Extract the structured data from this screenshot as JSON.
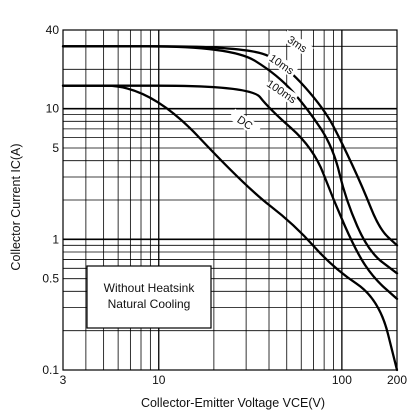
{
  "chart_data": {
    "type": "line",
    "title": "",
    "xlabel": "Collector-Emitter Voltage VCE(V)",
    "ylabel": "Collector Current IC(A)",
    "xscale": "log",
    "yscale": "log",
    "xlim": [
      3,
      200
    ],
    "ylim": [
      0.1,
      40
    ],
    "grid": true,
    "x_ticks": [
      {
        "value": 3,
        "label": "3"
      },
      {
        "value": 10,
        "label": "10"
      },
      {
        "value": 100,
        "label": "100"
      },
      {
        "value": 200,
        "label": "200"
      }
    ],
    "y_ticks": [
      {
        "value": 0.1,
        "label": "0.1"
      },
      {
        "value": 0.5,
        "label": "0.5"
      },
      {
        "value": 1,
        "label": "1"
      },
      {
        "value": 5,
        "label": "5"
      },
      {
        "value": 10,
        "label": "10"
      },
      {
        "value": 40,
        "label": "40"
      }
    ],
    "series": [
      {
        "name": "3ms",
        "label_at": [
          56,
          30
        ],
        "points": [
          [
            3,
            30
          ],
          [
            32,
            30
          ],
          [
            50,
            21
          ],
          [
            80,
            10
          ],
          [
            100,
            5.5
          ],
          [
            130,
            2.5
          ],
          [
            160,
            1.2
          ],
          [
            200,
            0.9
          ]
        ]
      },
      {
        "name": "10ms",
        "label_at": [
          46,
          21
        ],
        "points": [
          [
            3,
            30
          ],
          [
            25,
            30
          ],
          [
            45,
            18
          ],
          [
            65,
            10
          ],
          [
            90,
            5
          ],
          [
            105,
            2
          ],
          [
            140,
            0.8
          ],
          [
            200,
            0.55
          ]
        ]
      },
      {
        "name": "100ms",
        "label_at": [
          46,
          13
        ],
        "points": [
          [
            3,
            15
          ],
          [
            32,
            15
          ],
          [
            40,
            10
          ],
          [
            70,
            5
          ],
          [
            90,
            2
          ],
          [
            120,
            0.8
          ],
          [
            150,
            0.5
          ],
          [
            200,
            0.35
          ]
        ]
      },
      {
        "name": "DC",
        "label_at": [
          29,
          7.5
        ],
        "points": [
          [
            3,
            15
          ],
          [
            9,
            15
          ],
          [
            30,
            2.5
          ],
          [
            55,
            1.3
          ],
          [
            90,
            0.6
          ],
          [
            160,
            0.35
          ],
          [
            200,
            0.1
          ]
        ]
      }
    ],
    "annotation": {
      "lines": [
        "Without Heatsink",
        "Natural Cooling"
      ]
    }
  }
}
